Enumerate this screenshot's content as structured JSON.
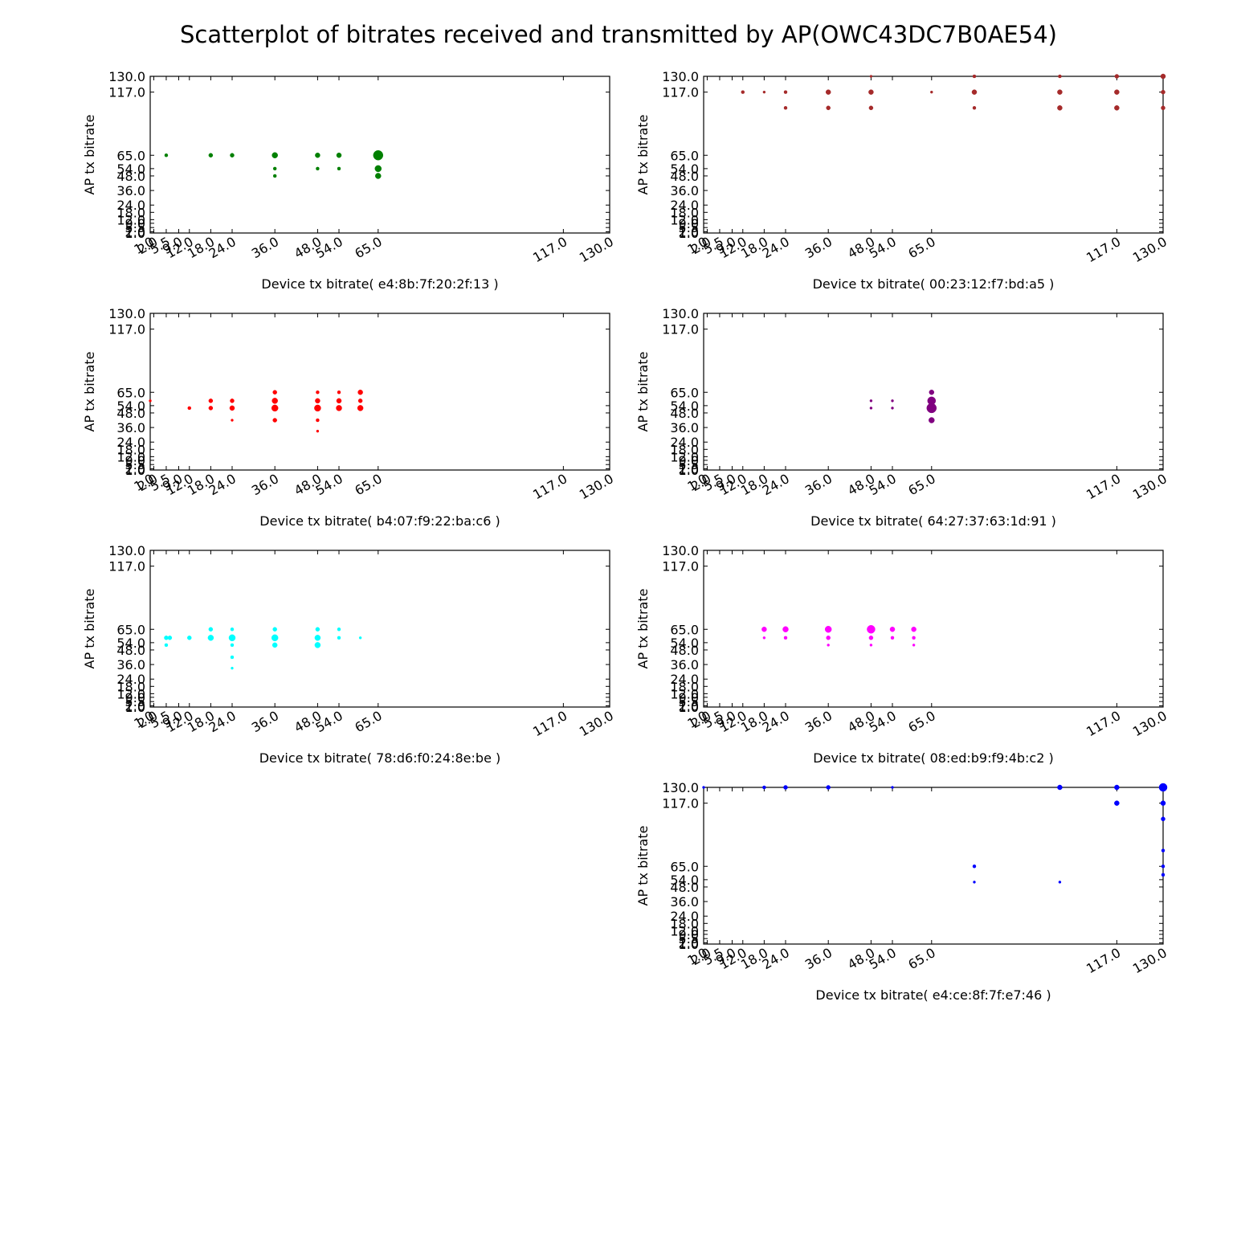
{
  "title": "Scatterplot of bitrates received and transmitted by AP(OWC43DC7B0AE54)",
  "chart_data": [
    {
      "type": "scatter",
      "xlabel": "Device tx bitrate( e4:8b:7f:20:2f:13 )",
      "ylabel": "AP tx bitrate",
      "color": "#008000",
      "xlim": [
        1.0,
        130.0
      ],
      "ylim": [
        1.0,
        130.0
      ],
      "xticks": [
        "1.0",
        "2.0",
        "5.5",
        "9.0",
        "12.0",
        "18.0",
        "24.0",
        "36.0",
        "48.0",
        "54.0",
        "65.0",
        "117.0",
        "130.0"
      ],
      "yticks": [
        "1.0",
        "2.0",
        "5.5",
        "9.0",
        "12.0",
        "18.0",
        "24.0",
        "36.0",
        "48.0",
        "54.0",
        "65.0",
        "117.0",
        "130.0"
      ],
      "points": [
        {
          "x": 5.5,
          "y": 65,
          "s": 2
        },
        {
          "x": 18,
          "y": 65,
          "s": 2.5
        },
        {
          "x": 24,
          "y": 65,
          "s": 2.5
        },
        {
          "x": 36,
          "y": 65,
          "s": 3.5
        },
        {
          "x": 36,
          "y": 54,
          "s": 2
        },
        {
          "x": 36,
          "y": 48,
          "s": 2
        },
        {
          "x": 48,
          "y": 65,
          "s": 3
        },
        {
          "x": 48,
          "y": 54,
          "s": 2
        },
        {
          "x": 54,
          "y": 65,
          "s": 3
        },
        {
          "x": 54,
          "y": 54,
          "s": 2
        },
        {
          "x": 65,
          "y": 65,
          "s": 6
        },
        {
          "x": 65,
          "y": 54,
          "s": 4
        },
        {
          "x": 65,
          "y": 48,
          "s": 3.5
        }
      ]
    },
    {
      "type": "scatter",
      "xlabel": "Device tx bitrate( 00:23:12:f7:bd:a5 )",
      "ylabel": "AP tx bitrate",
      "color": "#a52a2a",
      "xlim": [
        1.0,
        130.0
      ],
      "ylim": [
        1.0,
        130.0
      ],
      "xticks": [
        "1.0",
        "2.0",
        "5.5",
        "9.0",
        "12.0",
        "18.0",
        "24.0",
        "36.0",
        "48.0",
        "54.0",
        "65.0",
        "117.0",
        "130.0"
      ],
      "yticks": [
        "1.0",
        "2.0",
        "5.5",
        "9.0",
        "12.0",
        "18.0",
        "24.0",
        "36.0",
        "48.0",
        "54.0",
        "65.0",
        "117.0",
        "130.0"
      ],
      "points": [
        {
          "x": 12,
          "y": 117,
          "s": 2
        },
        {
          "x": 18,
          "y": 117,
          "s": 1.5
        },
        {
          "x": 24,
          "y": 117,
          "s": 2
        },
        {
          "x": 24,
          "y": 104,
          "s": 2
        },
        {
          "x": 36,
          "y": 117,
          "s": 3
        },
        {
          "x": 36,
          "y": 104,
          "s": 2.5
        },
        {
          "x": 48,
          "y": 130,
          "s": 1.5
        },
        {
          "x": 48,
          "y": 117,
          "s": 3
        },
        {
          "x": 48,
          "y": 104,
          "s": 2.5
        },
        {
          "x": 65,
          "y": 117,
          "s": 1.5
        },
        {
          "x": 77,
          "y": 130,
          "s": 2
        },
        {
          "x": 77,
          "y": 117,
          "s": 3
        },
        {
          "x": 77,
          "y": 104,
          "s": 2
        },
        {
          "x": 101,
          "y": 130,
          "s": 2
        },
        {
          "x": 101,
          "y": 117,
          "s": 3
        },
        {
          "x": 101,
          "y": 104,
          "s": 3
        },
        {
          "x": 117,
          "y": 130,
          "s": 2.5
        },
        {
          "x": 117,
          "y": 117,
          "s": 3
        },
        {
          "x": 117,
          "y": 104,
          "s": 3
        },
        {
          "x": 130,
          "y": 130,
          "s": 3
        },
        {
          "x": 130,
          "y": 117,
          "s": 2.5
        },
        {
          "x": 130,
          "y": 104,
          "s": 2.5
        }
      ]
    },
    {
      "type": "scatter",
      "xlabel": "Device tx bitrate( b4:07:f9:22:ba:c6 )",
      "ylabel": "AP tx bitrate",
      "color": "#ff0000",
      "xlim": [
        1.0,
        130.0
      ],
      "ylim": [
        1.0,
        130.0
      ],
      "xticks": [
        "1.0",
        "2.0",
        "5.5",
        "9.0",
        "12.0",
        "18.0",
        "24.0",
        "36.0",
        "48.0",
        "54.0",
        "65.0",
        "117.0",
        "130.0"
      ],
      "yticks": [
        "1.0",
        "2.0",
        "5.5",
        "9.0",
        "12.0",
        "18.0",
        "24.0",
        "36.0",
        "48.0",
        "54.0",
        "65.0",
        "117.0",
        "130.0"
      ],
      "points": [
        {
          "x": 1,
          "y": 58,
          "s": 1.5
        },
        {
          "x": 12,
          "y": 52,
          "s": 2
        },
        {
          "x": 18,
          "y": 58,
          "s": 2.5
        },
        {
          "x": 18,
          "y": 52,
          "s": 2.5
        },
        {
          "x": 24,
          "y": 58,
          "s": 2.5
        },
        {
          "x": 24,
          "y": 52,
          "s": 3
        },
        {
          "x": 24,
          "y": 42,
          "s": 1.5
        },
        {
          "x": 36,
          "y": 65,
          "s": 2.5
        },
        {
          "x": 36,
          "y": 58,
          "s": 3.5
        },
        {
          "x": 36,
          "y": 52,
          "s": 4
        },
        {
          "x": 36,
          "y": 42,
          "s": 2.5
        },
        {
          "x": 48,
          "y": 65,
          "s": 2
        },
        {
          "x": 48,
          "y": 58,
          "s": 3
        },
        {
          "x": 48,
          "y": 52,
          "s": 4
        },
        {
          "x": 48,
          "y": 42,
          "s": 2
        },
        {
          "x": 48,
          "y": 33,
          "s": 1.5
        },
        {
          "x": 54,
          "y": 65,
          "s": 2
        },
        {
          "x": 54,
          "y": 58,
          "s": 3
        },
        {
          "x": 54,
          "y": 52,
          "s": 3.5
        },
        {
          "x": 60,
          "y": 65,
          "s": 3
        },
        {
          "x": 60,
          "y": 58,
          "s": 2.5
        },
        {
          "x": 60,
          "y": 52,
          "s": 3.5
        }
      ]
    },
    {
      "type": "scatter",
      "xlabel": "Device tx bitrate( 64:27:37:63:1d:91 )",
      "ylabel": "AP tx bitrate",
      "color": "#800080",
      "xlim": [
        1.0,
        130.0
      ],
      "ylim": [
        1.0,
        130.0
      ],
      "xticks": [
        "1.0",
        "2.0",
        "5.5",
        "9.0",
        "12.0",
        "18.0",
        "24.0",
        "36.0",
        "48.0",
        "54.0",
        "65.0",
        "117.0",
        "130.0"
      ],
      "yticks": [
        "1.0",
        "2.0",
        "5.5",
        "9.0",
        "12.0",
        "18.0",
        "24.0",
        "36.0",
        "48.0",
        "54.0",
        "65.0",
        "117.0",
        "130.0"
      ],
      "points": [
        {
          "x": 48,
          "y": 58,
          "s": 1.5
        },
        {
          "x": 48,
          "y": 52,
          "s": 1.5
        },
        {
          "x": 54,
          "y": 58,
          "s": 1.5
        },
        {
          "x": 54,
          "y": 52,
          "s": 1.5
        },
        {
          "x": 65,
          "y": 65,
          "s": 3
        },
        {
          "x": 65,
          "y": 58,
          "s": 5
        },
        {
          "x": 65,
          "y": 52,
          "s": 6
        },
        {
          "x": 65,
          "y": 42,
          "s": 3.5
        }
      ]
    },
    {
      "type": "scatter",
      "xlabel": "Device tx bitrate( 78:d6:f0:24:8e:be )",
      "ylabel": "AP tx bitrate",
      "color": "#00ffff",
      "xlim": [
        1.0,
        130.0
      ],
      "ylim": [
        1.0,
        130.0
      ],
      "xticks": [
        "1.0",
        "2.0",
        "5.5",
        "9.0",
        "12.0",
        "18.0",
        "24.0",
        "36.0",
        "48.0",
        "54.0",
        "65.0",
        "117.0",
        "130.0"
      ],
      "yticks": [
        "1.0",
        "2.0",
        "5.5",
        "9.0",
        "12.0",
        "18.0",
        "24.0",
        "36.0",
        "48.0",
        "54.0",
        "65.0",
        "117.0",
        "130.0"
      ],
      "points": [
        {
          "x": 5.5,
          "y": 58,
          "s": 2.5
        },
        {
          "x": 5.5,
          "y": 52,
          "s": 2
        },
        {
          "x": 6.5,
          "y": 58,
          "s": 2.5
        },
        {
          "x": 12,
          "y": 58,
          "s": 2.5
        },
        {
          "x": 18,
          "y": 65,
          "s": 2.5
        },
        {
          "x": 18,
          "y": 58,
          "s": 3.5
        },
        {
          "x": 24,
          "y": 65,
          "s": 2
        },
        {
          "x": 24,
          "y": 58,
          "s": 4
        },
        {
          "x": 24,
          "y": 52,
          "s": 2
        },
        {
          "x": 24,
          "y": 42,
          "s": 2
        },
        {
          "x": 24,
          "y": 33,
          "s": 1.5
        },
        {
          "x": 36,
          "y": 65,
          "s": 2.5
        },
        {
          "x": 36,
          "y": 58,
          "s": 4
        },
        {
          "x": 36,
          "y": 52,
          "s": 3
        },
        {
          "x": 48,
          "y": 65,
          "s": 2.5
        },
        {
          "x": 48,
          "y": 58,
          "s": 3.5
        },
        {
          "x": 48,
          "y": 52,
          "s": 3.5
        },
        {
          "x": 54,
          "y": 65,
          "s": 2
        },
        {
          "x": 54,
          "y": 58,
          "s": 2
        },
        {
          "x": 60,
          "y": 58,
          "s": 1.5
        }
      ]
    },
    {
      "type": "scatter",
      "xlabel": "Device tx bitrate( 08:ed:b9:f9:4b:c2 )",
      "ylabel": "AP tx bitrate",
      "color": "#ff00ff",
      "xlim": [
        1.0,
        130.0
      ],
      "ylim": [
        1.0,
        130.0
      ],
      "xticks": [
        "1.0",
        "2.0",
        "5.5",
        "9.0",
        "12.0",
        "18.0",
        "24.0",
        "36.0",
        "48.0",
        "54.0",
        "65.0",
        "117.0",
        "130.0"
      ],
      "yticks": [
        "1.0",
        "2.0",
        "5.5",
        "9.0",
        "12.0",
        "18.0",
        "24.0",
        "36.0",
        "48.0",
        "54.0",
        "65.0",
        "117.0",
        "130.0"
      ],
      "points": [
        {
          "x": 18,
          "y": 65,
          "s": 3
        },
        {
          "x": 18,
          "y": 58,
          "s": 1.5
        },
        {
          "x": 24,
          "y": 65,
          "s": 3.5
        },
        {
          "x": 24,
          "y": 58,
          "s": 2
        },
        {
          "x": 36,
          "y": 65,
          "s": 4
        },
        {
          "x": 36,
          "y": 58,
          "s": 2.5
        },
        {
          "x": 36,
          "y": 52,
          "s": 1.5
        },
        {
          "x": 48,
          "y": 65,
          "s": 5
        },
        {
          "x": 48,
          "y": 58,
          "s": 2.5
        },
        {
          "x": 48,
          "y": 52,
          "s": 1.5
        },
        {
          "x": 54,
          "y": 65,
          "s": 3
        },
        {
          "x": 54,
          "y": 58,
          "s": 2
        },
        {
          "x": 60,
          "y": 65,
          "s": 3
        },
        {
          "x": 60,
          "y": 58,
          "s": 2
        },
        {
          "x": 60,
          "y": 52,
          "s": 1.5
        }
      ]
    },
    {
      "type": "scatter",
      "xlabel": "Device tx bitrate( e4:ce:8f:7f:e7:46 )",
      "ylabel": "AP tx bitrate",
      "color": "#0000ff",
      "xlim": [
        1.0,
        130.0
      ],
      "ylim": [
        1.0,
        130.0
      ],
      "xticks": [
        "1.0",
        "2.0",
        "5.5",
        "9.0",
        "12.0",
        "18.0",
        "24.0",
        "36.0",
        "48.0",
        "54.0",
        "65.0",
        "117.0",
        "130.0"
      ],
      "yticks": [
        "1.0",
        "2.0",
        "5.5",
        "9.0",
        "12.0",
        "18.0",
        "24.0",
        "36.0",
        "48.0",
        "54.0",
        "65.0",
        "117.0",
        "130.0"
      ],
      "points": [
        {
          "x": 1,
          "y": 130,
          "s": 1.5
        },
        {
          "x": 18,
          "y": 130,
          "s": 2
        },
        {
          "x": 24,
          "y": 130,
          "s": 2.5
        },
        {
          "x": 36,
          "y": 130,
          "s": 2.5
        },
        {
          "x": 54,
          "y": 130,
          "s": 1.5
        },
        {
          "x": 77,
          "y": 65,
          "s": 2
        },
        {
          "x": 77,
          "y": 52,
          "s": 1.5
        },
        {
          "x": 101,
          "y": 130,
          "s": 3
        },
        {
          "x": 101,
          "y": 52,
          "s": 1.5
        },
        {
          "x": 117,
          "y": 130,
          "s": 3
        },
        {
          "x": 117,
          "y": 117,
          "s": 3
        },
        {
          "x": 130,
          "y": 130,
          "s": 5
        },
        {
          "x": 130,
          "y": 117,
          "s": 3
        },
        {
          "x": 130,
          "y": 104,
          "s": 2.5
        },
        {
          "x": 130,
          "y": 78,
          "s": 2
        },
        {
          "x": 130,
          "y": 65,
          "s": 2
        },
        {
          "x": 130,
          "y": 58,
          "s": 2
        }
      ]
    }
  ]
}
